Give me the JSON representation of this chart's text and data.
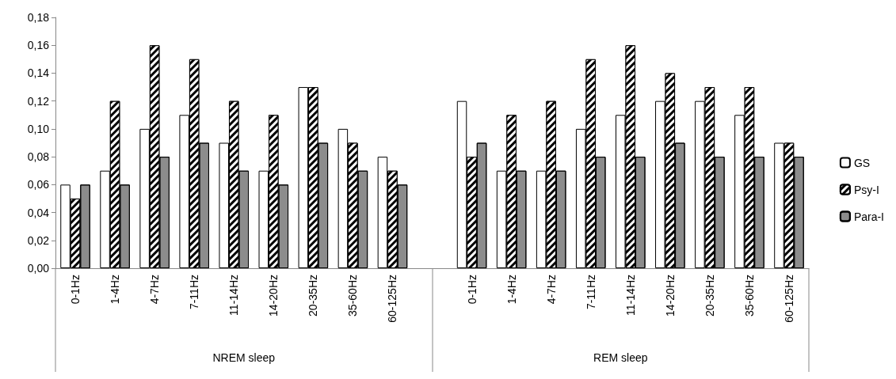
{
  "chart_data": {
    "type": "bar",
    "categories": [
      "0-1Hz",
      "1-4Hz",
      "4-7Hz",
      "7-11Hz",
      "11-14Hz",
      "14-20Hz",
      "20-35Hz",
      "35-60Hz",
      "60-125Hz",
      null,
      "0-1Hz",
      "1-4Hz",
      "4-7Hz",
      "7-11Hz",
      "11-14Hz",
      "14-20Hz",
      "20-35Hz",
      "35-60Hz",
      "60-125Hz"
    ],
    "series": [
      {
        "name": "GS",
        "color": "#ffffff",
        "values": [
          0.06,
          0.07,
          0.1,
          0.11,
          0.09,
          0.07,
          0.13,
          0.1,
          0.08,
          null,
          0.12,
          0.07,
          0.07,
          0.1,
          0.11,
          0.12,
          0.12,
          0.11,
          0.09
        ]
      },
      {
        "name": "Psy-I",
        "color": "#000000",
        "values": [
          0.05,
          0.12,
          0.16,
          0.15,
          0.12,
          0.11,
          0.13,
          0.09,
          0.07,
          null,
          0.08,
          0.11,
          0.12,
          0.15,
          0.16,
          0.14,
          0.13,
          0.13,
          0.09
        ]
      },
      {
        "name": "Para-I",
        "color": "#8c8c8c",
        "values": [
          0.06,
          0.06,
          0.08,
          0.09,
          0.07,
          0.06,
          0.09,
          0.07,
          0.06,
          null,
          0.09,
          0.07,
          0.07,
          0.08,
          0.08,
          0.09,
          0.08,
          0.08,
          0.08
        ]
      }
    ],
    "ylim": [
      0,
      0.18
    ],
    "yticks": [
      {
        "value": 0,
        "label": "0,00"
      },
      {
        "value": 0.02,
        "label": "0,02"
      },
      {
        "value": 0.04,
        "label": "0,04"
      },
      {
        "value": 0.06,
        "label": "0,06"
      },
      {
        "value": 0.08,
        "label": "0,08"
      },
      {
        "value": 0.1,
        "label": "0,10"
      },
      {
        "value": 0.12,
        "label": "0,12"
      },
      {
        "value": 0.14,
        "label": "0,14"
      },
      {
        "value": 0.16,
        "label": "0,16"
      },
      {
        "value": 0.18,
        "label": "0,18"
      }
    ],
    "annotations": [
      "NREM sleep",
      "REM sleep"
    ],
    "grid": false,
    "legend": "right"
  }
}
